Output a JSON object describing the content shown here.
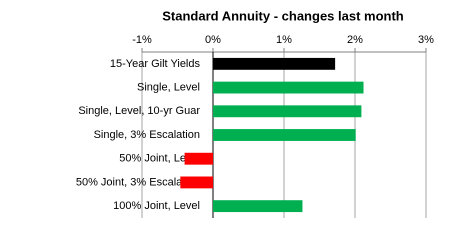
{
  "chart_data": {
    "type": "hbar",
    "title": "Standard Annuity  - changes last month",
    "categories": [
      "15-Year Gilt Yields",
      "Single, Level",
      "Single, Level, 10-yr Guar",
      "Single, 3% Escalation",
      "50% Joint, Level",
      "50% Joint, 3% Escalation",
      "100% Joint, Level"
    ],
    "values": [
      1.72,
      2.12,
      2.09,
      2.01,
      -0.4,
      -0.46,
      1.26
    ],
    "colors": [
      "#000000",
      "#00b050",
      "#00b050",
      "#00b050",
      "#ff0000",
      "#ff0000",
      "#00b050"
    ],
    "xlim": [
      -1,
      3
    ],
    "xticks": [
      {
        "value": -1,
        "label": "-1%"
      },
      {
        "value": 0,
        "label": "0%"
      },
      {
        "value": 1,
        "label": "1%"
      },
      {
        "value": 2,
        "label": "2%"
      },
      {
        "value": 3,
        "label": "3%"
      }
    ],
    "grid": true
  }
}
